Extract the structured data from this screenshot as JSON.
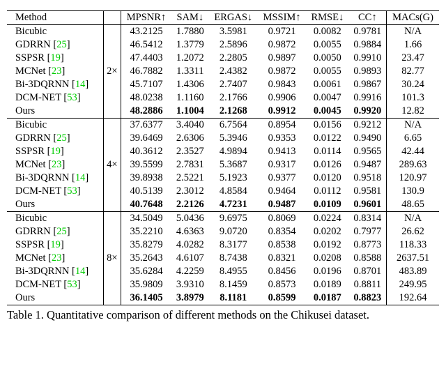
{
  "columns": [
    {
      "label": "Method",
      "key": "method"
    },
    {
      "label": "MPSNR↑",
      "key": "mpsnr"
    },
    {
      "label": "SAM↓",
      "key": "sam"
    },
    {
      "label": "ERGAS↓",
      "key": "ergas"
    },
    {
      "label": "MSSIM↑",
      "key": "mssim"
    },
    {
      "label": "RMSE↓",
      "key": "rmse"
    },
    {
      "label": "CC↑",
      "key": "cc"
    },
    {
      "label": "MACs(G)",
      "key": "macs"
    }
  ],
  "scale_col": true,
  "ref_color": "#00cc00",
  "blocks": [
    {
      "scale": "2×",
      "rows": [
        {
          "method": "Bicubic",
          "ref": null,
          "mpsnr": "43.2125",
          "sam": "1.7880",
          "ergas": "3.5981",
          "mssim": "0.9721",
          "rmse": "0.0082",
          "cc": "0.9781",
          "macs": "N/A"
        },
        {
          "method": "GDRRN",
          "ref": "25",
          "mpsnr": "46.5412",
          "sam": "1.3779",
          "ergas": "2.5896",
          "mssim": "0.9872",
          "rmse": "0.0055",
          "cc": "0.9884",
          "macs": "1.66"
        },
        {
          "method": "SSPSR",
          "ref": "19",
          "mpsnr": "47.4403",
          "sam": "1.2072",
          "ergas": "2.2805",
          "mssim": "0.9897",
          "rmse": "0.0050",
          "cc": "0.9910",
          "macs": "23.47"
        },
        {
          "method": "MCNet",
          "ref": "23",
          "mpsnr": "46.7882",
          "sam": "1.3311",
          "ergas": "2.4382",
          "mssim": "0.9872",
          "rmse": "0.0055",
          "cc": "0.9893",
          "macs": "82.77"
        },
        {
          "method": "Bi-3DQRNN",
          "ref": "14",
          "mpsnr": "45.7107",
          "sam": "1.4306",
          "ergas": "2.7407",
          "mssim": "0.9843",
          "rmse": "0.0061",
          "cc": "0.9867",
          "macs": "30.24"
        },
        {
          "method": "DCM-NET",
          "ref": "53",
          "mpsnr": "48.0238",
          "sam": "1.1160",
          "ergas": "2.1766",
          "mssim": "0.9906",
          "rmse": "0.0047",
          "cc": "0.9916",
          "macs": "101.3"
        },
        {
          "method": "Ours",
          "bold": true,
          "ref": null,
          "mpsnr": "48.2886",
          "sam": "1.1004",
          "ergas": "2.1268",
          "mssim": "0.9912",
          "rmse": "0.0045",
          "cc": "0.9920",
          "macs": "12.82",
          "macs_bold": false
        }
      ]
    },
    {
      "scale": "4×",
      "rows": [
        {
          "method": "Bicubic",
          "ref": null,
          "mpsnr": "37.6377",
          "sam": "3.4040",
          "ergas": "6.7564",
          "mssim": "0.8954",
          "rmse": "0.0156",
          "cc": "0.9212",
          "macs": "N/A"
        },
        {
          "method": "GDRRN",
          "ref": "25",
          "mpsnr": "39.6469",
          "sam": "2.6306",
          "ergas": "5.3946",
          "mssim": "0.9353",
          "rmse": "0.0122",
          "cc": "0.9490",
          "macs": "6.65"
        },
        {
          "method": "SSPSR",
          "ref": "19",
          "mpsnr": "40.3612",
          "sam": "2.3527",
          "ergas": "4.9894",
          "mssim": "0.9413",
          "rmse": "0.0114",
          "cc": "0.9565",
          "macs": "42.44"
        },
        {
          "method": "MCNet",
          "ref": "23",
          "mpsnr": "39.5599",
          "sam": "2.7831",
          "ergas": "5.3687",
          "mssim": "0.9317",
          "rmse": "0.0126",
          "cc": "0.9487",
          "macs": "289.63"
        },
        {
          "method": "Bi-3DQRNN",
          "ref": "14",
          "mpsnr": "39.8938",
          "sam": "2.5221",
          "ergas": "5.1923",
          "mssim": "0.9377",
          "rmse": "0.0120",
          "cc": "0.9518",
          "macs": "120.97"
        },
        {
          "method": "DCM-NET",
          "ref": "53",
          "mpsnr": "40.5139",
          "sam": "2.3012",
          "ergas": "4.8584",
          "mssim": "0.9464",
          "rmse": "0.0112",
          "cc": "0.9581",
          "macs": "130.9"
        },
        {
          "method": "Ours",
          "bold": true,
          "ref": null,
          "mpsnr": "40.7648",
          "sam": "2.2126",
          "ergas": "4.7231",
          "mssim": "0.9487",
          "rmse": "0.0109",
          "cc": "0.9601",
          "macs": "48.65",
          "macs_bold": false
        }
      ]
    },
    {
      "scale": "8×",
      "rows": [
        {
          "method": "Bicubic",
          "ref": null,
          "mpsnr": "34.5049",
          "sam": "5.0436",
          "ergas": "9.6975",
          "mssim": "0.8069",
          "rmse": "0.0224",
          "cc": "0.8314",
          "macs": "N/A"
        },
        {
          "method": "GDRRN",
          "ref": "25",
          "mpsnr": "35.2210",
          "sam": "4.6363",
          "ergas": "9.0720",
          "mssim": "0.8354",
          "rmse": "0.0202",
          "cc": "0.7977",
          "macs": "26.62"
        },
        {
          "method": "SSPSR",
          "ref": "19",
          "mpsnr": "35.8279",
          "sam": "4.0282",
          "ergas": "8.3177",
          "mssim": "0.8538",
          "rmse": "0.0192",
          "cc": "0.8773",
          "macs": "118.33"
        },
        {
          "method": "MCNet",
          "ref": "23",
          "mpsnr": "35.2643",
          "sam": "4.6107",
          "ergas": "8.7438",
          "mssim": "0.8321",
          "rmse": "0.0208",
          "cc": "0.8588",
          "macs": "2637.51"
        },
        {
          "method": "Bi-3DQRNN",
          "ref": "14",
          "mpsnr": "35.6284",
          "sam": "4.2259",
          "ergas": "8.4955",
          "mssim": "0.8456",
          "rmse": "0.0196",
          "cc": "0.8701",
          "macs": "483.89"
        },
        {
          "method": "DCM-NET",
          "ref": "53",
          "mpsnr": "35.9809",
          "sam": "3.9310",
          "ergas": "8.1459",
          "mssim": "0.8573",
          "rmse": "0.0189",
          "cc": "0.8811",
          "macs": "249.95"
        },
        {
          "method": "Ours",
          "bold": true,
          "ref": null,
          "mpsnr": "36.1405",
          "sam": "3.8979",
          "ergas": "8.1181",
          "mssim": "0.8599",
          "rmse": "0.0187",
          "cc": "0.8823",
          "macs": "192.64",
          "macs_bold": false
        }
      ]
    }
  ],
  "caption": "Table 1. Quantitative comparison of different methods on the Chikusei dataset."
}
